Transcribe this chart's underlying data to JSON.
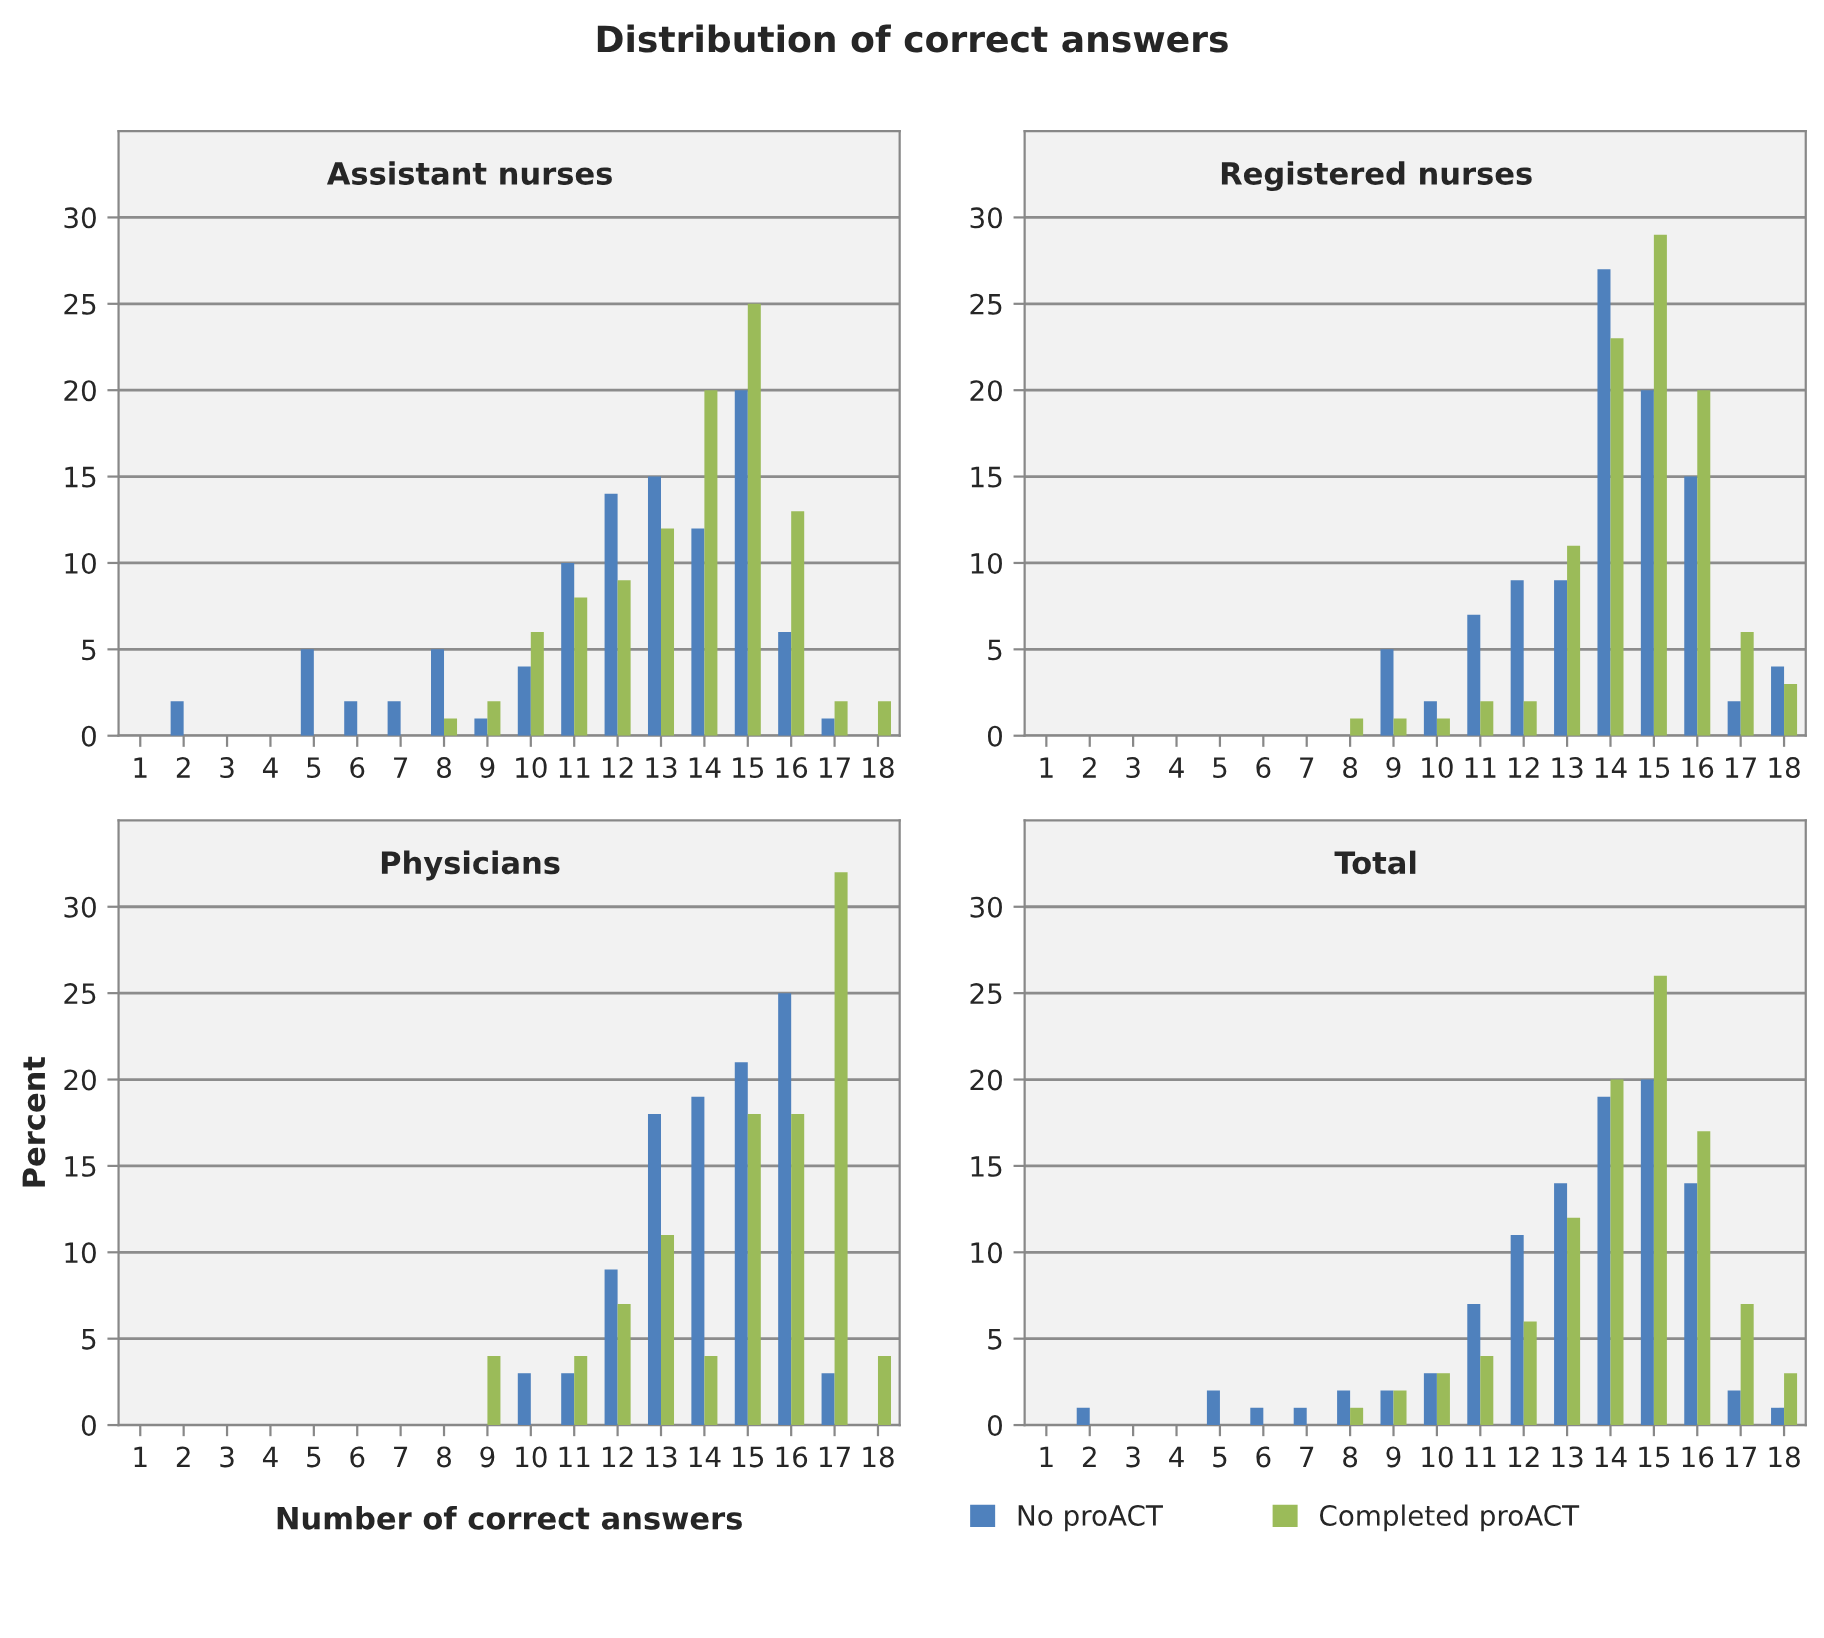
{
  "chart_data": [
    {
      "type": "bar",
      "title": "Distribution of correct answers",
      "subtitle": "Assistant nurses",
      "categories": [
        "1",
        "2",
        "3",
        "4",
        "5",
        "6",
        "7",
        "8",
        "9",
        "10",
        "11",
        "12",
        "13",
        "14",
        "15",
        "16",
        "17",
        "18"
      ],
      "ylim": [
        0,
        35
      ],
      "yticks": [
        0,
        5,
        10,
        15,
        20,
        25,
        30
      ],
      "grid": "y",
      "legend": false,
      "series": [
        {
          "color": "#4f81bd",
          "values": [
            0,
            2,
            0,
            0,
            5,
            2,
            2,
            5,
            1,
            4,
            10,
            14,
            15,
            12,
            20,
            6,
            1,
            0
          ]
        },
        {
          "color": "#9bbb59",
          "values": [
            0,
            0,
            0,
            0,
            0,
            0,
            0,
            1,
            2,
            6,
            8,
            9,
            12,
            20,
            25,
            13,
            2,
            2
          ]
        }
      ]
    },
    {
      "type": "bar",
      "subtitle": "Registered nurses",
      "categories": [
        "1",
        "2",
        "3",
        "4",
        "5",
        "6",
        "7",
        "8",
        "9",
        "10",
        "11",
        "12",
        "13",
        "14",
        "15",
        "16",
        "17",
        "18"
      ],
      "ylim": [
        0,
        35
      ],
      "yticks": [
        0,
        5,
        10,
        15,
        20,
        25,
        30
      ],
      "grid": "y",
      "legend": false,
      "series": [
        {
          "color": "#4f81bd",
          "values": [
            0,
            0,
            0,
            0,
            0,
            0,
            0,
            0,
            5,
            2,
            7,
            9,
            9,
            27,
            20,
            15,
            2,
            4
          ]
        },
        {
          "color": "#9bbb59",
          "values": [
            0,
            0,
            0,
            0,
            0,
            0,
            0,
            1,
            1,
            1,
            2,
            2,
            11,
            23,
            29,
            20,
            6,
            3
          ]
        }
      ]
    },
    {
      "type": "bar",
      "subtitle": "Physicians",
      "xlabel": "Number of correct answers",
      "ylabel": "Percent",
      "categories": [
        "1",
        "2",
        "3",
        "4",
        "5",
        "6",
        "7",
        "8",
        "9",
        "10",
        "11",
        "12",
        "13",
        "14",
        "15",
        "16",
        "17",
        "18"
      ],
      "ylim": [
        0,
        35
      ],
      "yticks": [
        0,
        5,
        10,
        15,
        20,
        25,
        30
      ],
      "grid": "y",
      "legend": false,
      "series": [
        {
          "color": "#4f81bd",
          "values": [
            0,
            0,
            0,
            0,
            0,
            0,
            0,
            0,
            0,
            3,
            3,
            9,
            18,
            19,
            21,
            25,
            3,
            0
          ]
        },
        {
          "color": "#9bbb59",
          "values": [
            0,
            0,
            0,
            0,
            0,
            0,
            0,
            0,
            4,
            0,
            4,
            7,
            11,
            4,
            18,
            18,
            32,
            4
          ]
        }
      ]
    },
    {
      "type": "bar",
      "subtitle": "Total",
      "categories": [
        "1",
        "2",
        "3",
        "4",
        "5",
        "6",
        "7",
        "8",
        "9",
        "10",
        "11",
        "12",
        "13",
        "14",
        "15",
        "16",
        "17",
        "18"
      ],
      "ylim": [
        0,
        35
      ],
      "yticks": [
        0,
        5,
        10,
        15,
        20,
        25,
        30
      ],
      "grid": "y",
      "legend": "bottom",
      "series": [
        {
          "name": "No proACT",
          "color": "#4f81bd",
          "values": [
            0,
            1,
            0,
            0,
            2,
            1,
            1,
            2,
            2,
            3,
            7,
            11,
            14,
            19,
            20,
            14,
            2,
            1
          ]
        },
        {
          "name": "Completed proACT",
          "color": "#9bbb59",
          "values": [
            0,
            0,
            0,
            0,
            0,
            0,
            0,
            1,
            2,
            3,
            4,
            6,
            12,
            20,
            26,
            17,
            7,
            3
          ]
        }
      ]
    }
  ]
}
